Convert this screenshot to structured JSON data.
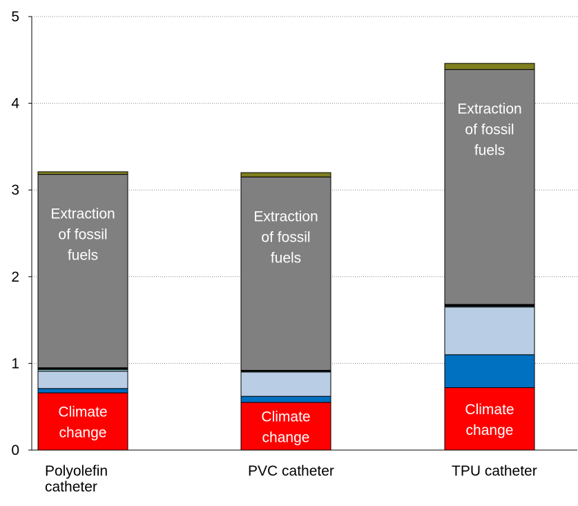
{
  "chart_data": {
    "type": "bar",
    "stacked": true,
    "categories": [
      [
        "Polyolefin",
        "catheter"
      ],
      [
        "PVC catheter"
      ],
      [
        "TPU catheter"
      ]
    ],
    "ylim": [
      0,
      5
    ],
    "yticks": [
      "0",
      "1",
      "2",
      "3",
      "4",
      "5"
    ],
    "grid": true,
    "series": [
      {
        "name": "Climate change",
        "color": "#ff0000",
        "label": [
          "Climate",
          "change"
        ],
        "values": [
          0.66,
          0.55,
          0.72
        ]
      },
      {
        "color": "#0070c0",
        "values": [
          0.05,
          0.07,
          0.38
        ]
      },
      {
        "color": "#b9cde5",
        "values": [
          0.2,
          0.28,
          0.55
        ]
      },
      {
        "color": "#92d4d8",
        "values": [
          0.02,
          0.01,
          0.01
        ]
      },
      {
        "color": "#000000",
        "values": [
          0.02,
          0.01,
          0.02
        ]
      },
      {
        "name": "Extraction of fossil fuels",
        "color": "#808080",
        "label": [
          "Extraction",
          "of fossil",
          "fuels"
        ],
        "values": [
          2.23,
          2.23,
          2.71
        ]
      },
      {
        "color": "#7f7f1f",
        "values": [
          0.03,
          0.05,
          0.07
        ]
      }
    ]
  }
}
